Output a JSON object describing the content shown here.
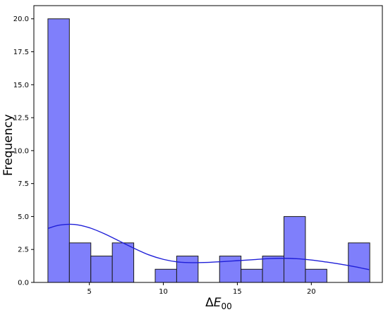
{
  "chart_data": {
    "type": "bar",
    "title": "",
    "xlabel_base": "ΔE",
    "xlabel_sub": "00",
    "ylabel": "Frequency",
    "xlim": [
      1.25,
      24.8
    ],
    "ylim": [
      0,
      21
    ],
    "bin_width": 1.45,
    "bins": [
      {
        "start": 2.2,
        "count": 20
      },
      {
        "start": 3.65,
        "count": 3
      },
      {
        "start": 5.1,
        "count": 2
      },
      {
        "start": 6.55,
        "count": 3
      },
      {
        "start": 8.0,
        "count": 0
      },
      {
        "start": 9.45,
        "count": 1
      },
      {
        "start": 10.9,
        "count": 2
      },
      {
        "start": 12.35,
        "count": 0
      },
      {
        "start": 13.8,
        "count": 2
      },
      {
        "start": 15.25,
        "count": 1
      },
      {
        "start": 16.7,
        "count": 2
      },
      {
        "start": 18.15,
        "count": 5
      },
      {
        "start": 19.6,
        "count": 1
      },
      {
        "start": 21.05,
        "count": 0
      },
      {
        "start": 22.5,
        "count": 3
      }
    ],
    "kde": {
      "x": [
        2.2,
        3.0,
        4.0,
        5.0,
        6.0,
        7.0,
        8.0,
        9.0,
        10.0,
        11.0,
        12.0,
        13.0,
        14.0,
        15.0,
        16.0,
        17.0,
        18.0,
        19.0,
        20.0,
        21.0,
        22.0,
        23.0,
        23.9
      ],
      "y": [
        4.1,
        4.35,
        4.4,
        4.15,
        3.7,
        3.15,
        2.6,
        2.1,
        1.75,
        1.55,
        1.5,
        1.52,
        1.58,
        1.65,
        1.72,
        1.8,
        1.83,
        1.8,
        1.7,
        1.55,
        1.38,
        1.18,
        0.97
      ]
    },
    "xticks": [
      5,
      10,
      15,
      20
    ],
    "yticks": [
      0.0,
      2.5,
      5.0,
      7.5,
      10.0,
      12.5,
      15.0,
      17.5,
      20.0
    ],
    "bar_fill": "#7f7ffb",
    "bar_stroke": "#1a1a1a",
    "kde_color": "#1f1fd8",
    "grid": false,
    "legend": "none"
  }
}
